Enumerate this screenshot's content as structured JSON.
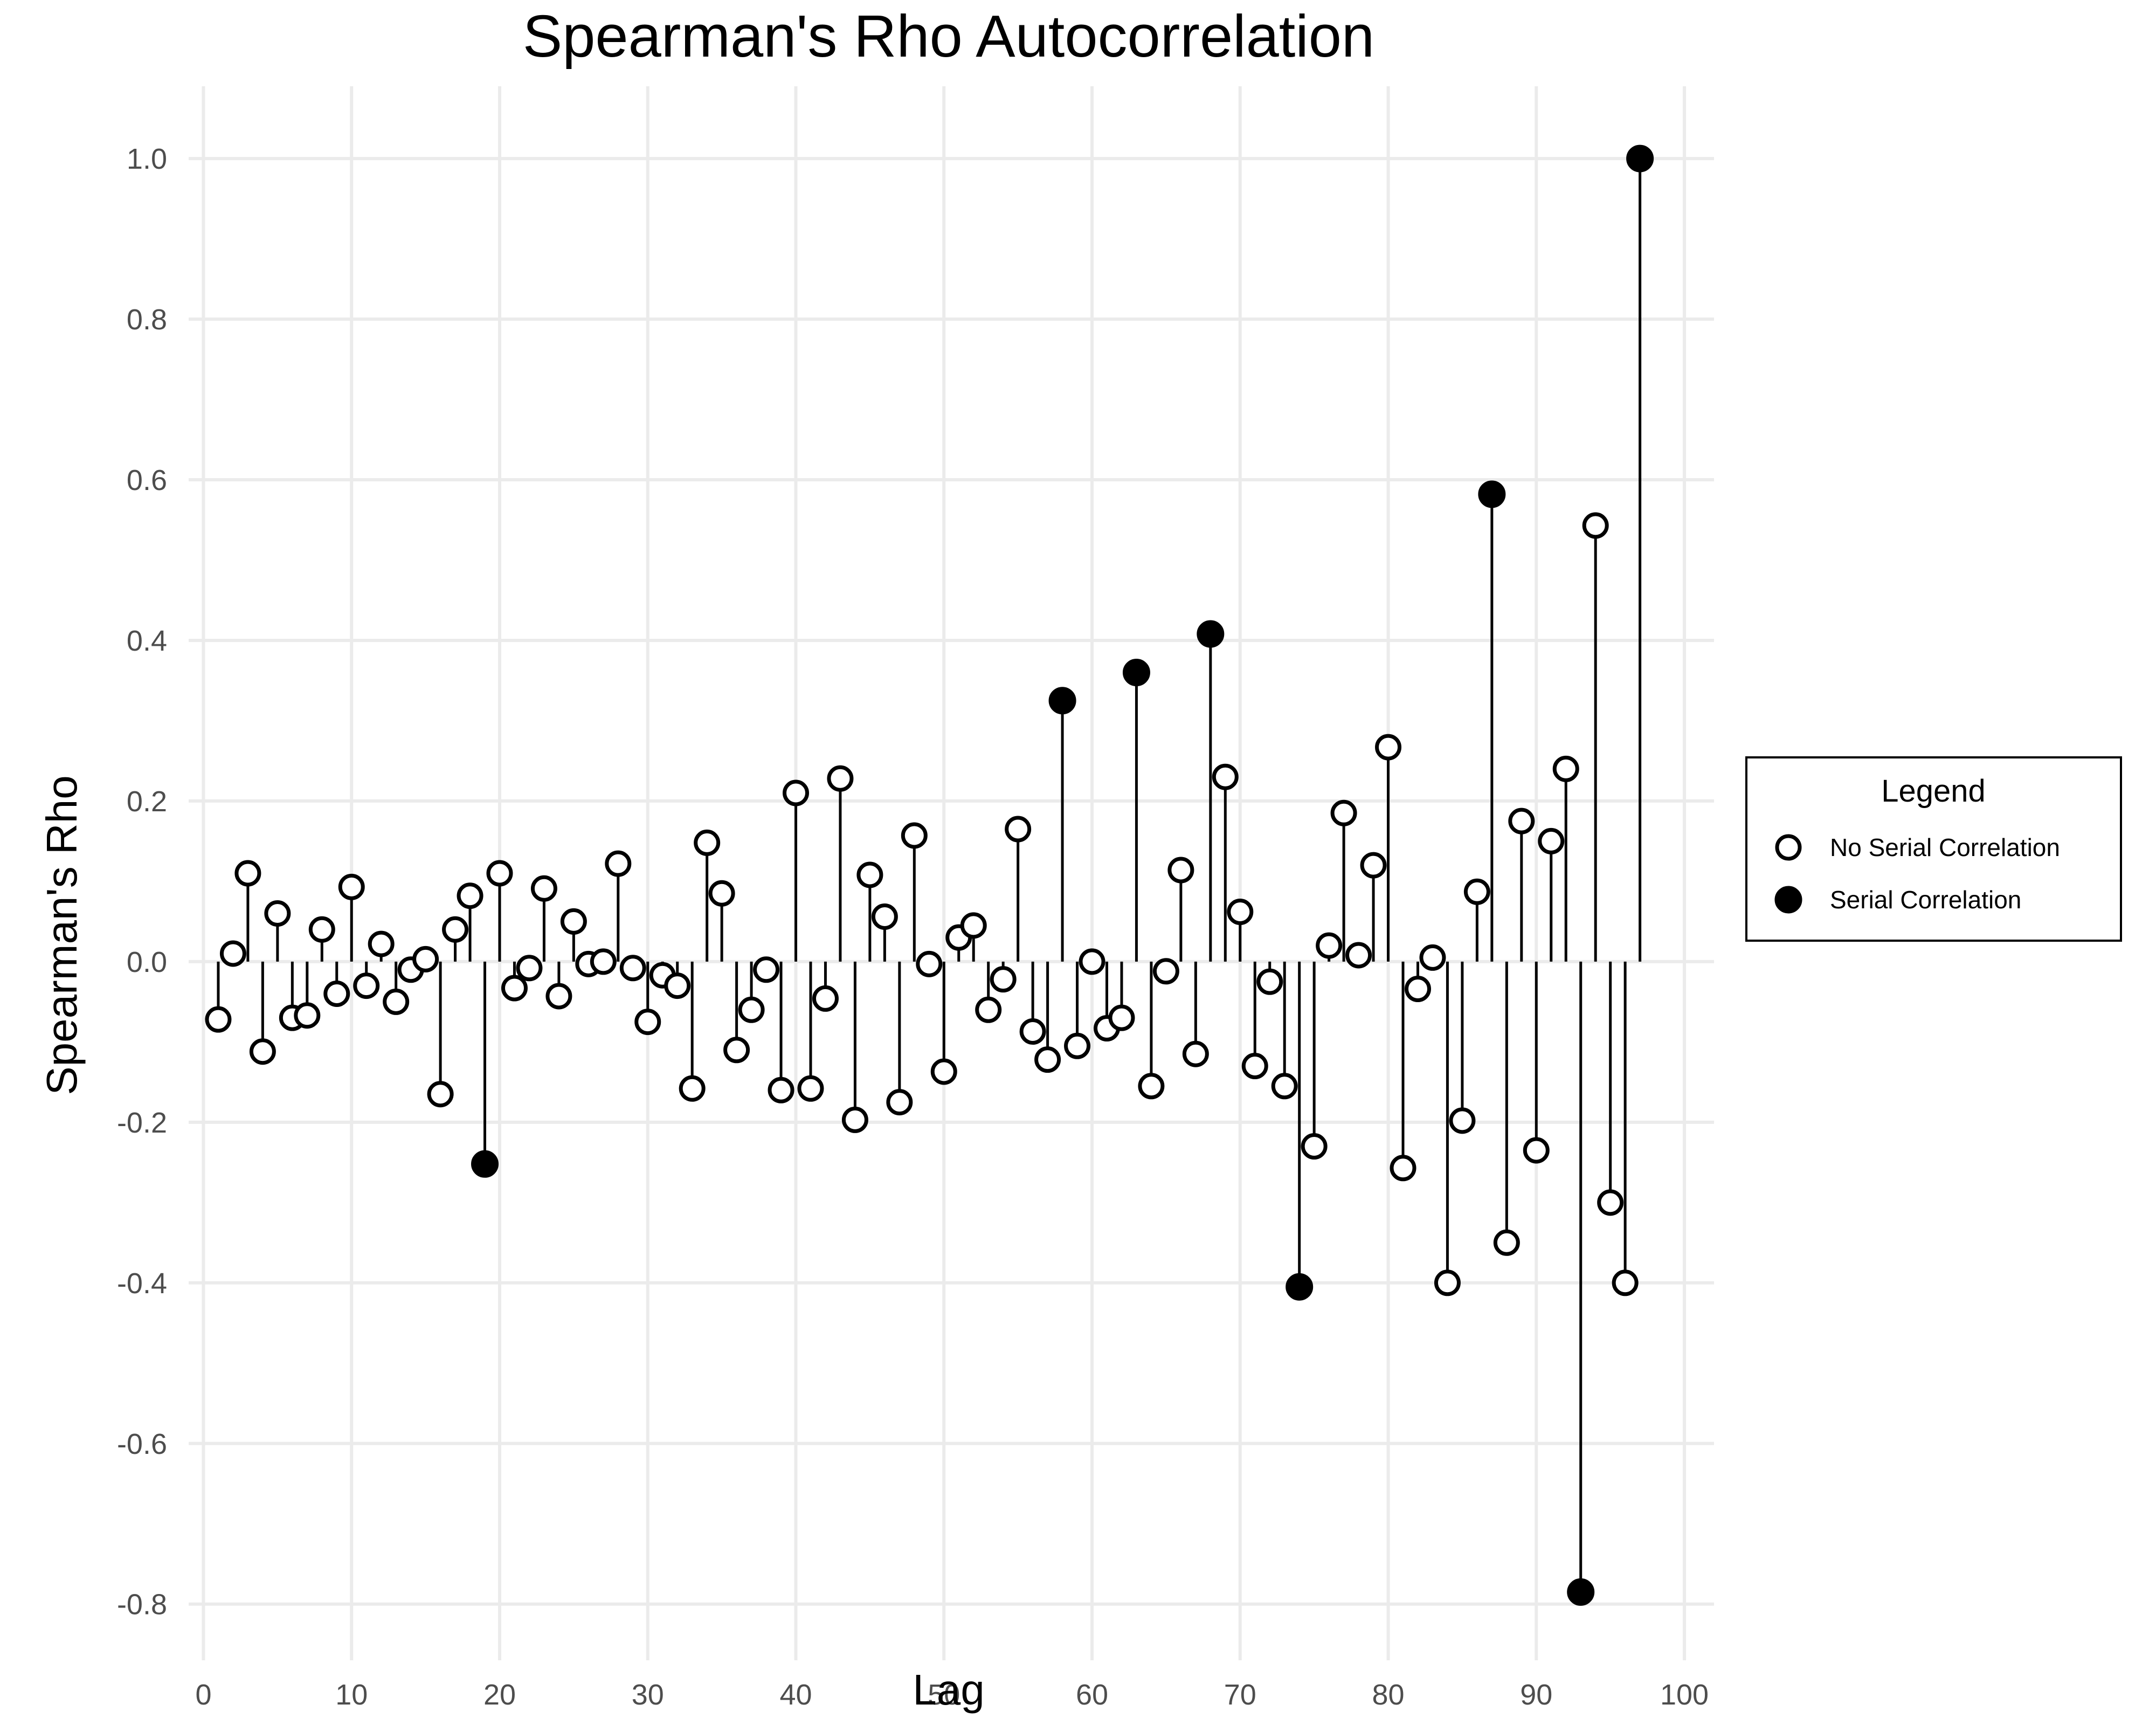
{
  "chart_data": {
    "type": "scatter",
    "style": "lollipop",
    "title": "Spearman's Rho Autocorrelation",
    "xlabel": "Lag",
    "ylabel": "Spearman's Rho",
    "xlim": [
      -1,
      102
    ],
    "ylim": [
      -0.87,
      1.09
    ],
    "xticks": [
      0,
      10,
      20,
      30,
      40,
      50,
      60,
      70,
      80,
      90,
      100
    ],
    "xtick_labels": [
      "0",
      "10",
      "20",
      "30",
      "40",
      "50",
      "60",
      "70",
      "80",
      "90",
      "100"
    ],
    "yticks": [
      1.0,
      0.8,
      0.6,
      0.4,
      0.2,
      0.0,
      -0.2,
      -0.4,
      -0.6,
      -0.8
    ],
    "ytick_labels": [
      "1.0",
      "0.8",
      "0.6",
      "0.4",
      "0.2",
      "0.0",
      "-0.2",
      "-0.4",
      "-0.6",
      "-0.8"
    ],
    "grid": true,
    "legend": {
      "title": "Legend",
      "placement": "right",
      "entries": [
        {
          "label": "No Serial Correlation",
          "marker": "open-circle"
        },
        {
          "label": "Serial Correlation",
          "marker": "filled-circle"
        }
      ]
    },
    "colors": {
      "stem": "#000000",
      "grid": "#ebebeb",
      "open_fill": "#ffffff",
      "filled": "#000000"
    },
    "x": [
      1,
      2,
      3,
      4,
      5,
      6,
      7,
      8,
      9,
      10,
      11,
      12,
      13,
      14,
      15,
      16,
      17,
      18,
      19,
      20,
      21,
      22,
      23,
      24,
      25,
      26,
      27,
      28,
      29,
      30,
      31,
      32,
      33,
      34,
      35,
      36,
      37,
      38,
      39,
      40,
      41,
      42,
      43,
      44,
      45,
      46,
      47,
      48,
      49,
      50,
      51,
      52,
      53,
      54,
      55,
      56,
      57,
      58,
      59,
      60,
      61,
      62,
      63,
      64,
      65,
      66,
      67,
      68,
      69,
      70,
      71,
      72,
      73,
      74,
      75,
      76,
      77,
      78,
      79,
      80,
      81,
      82,
      83,
      84,
      85,
      86,
      87,
      88,
      89,
      90,
      91,
      92,
      93,
      94,
      95,
      96,
      97
    ],
    "y": [
      -0.072,
      0.01,
      0.11,
      -0.112,
      0.06,
      -0.07,
      -0.067,
      0.04,
      -0.04,
      0.093,
      -0.03,
      0.022,
      -0.05,
      -0.01,
      0.003,
      -0.165,
      0.04,
      0.082,
      -0.252,
      0.11,
      -0.033,
      -0.008,
      0.091,
      -0.043,
      0.05,
      -0.003,
      0.0,
      0.122,
      -0.008,
      -0.075,
      -0.017,
      -0.03,
      -0.158,
      0.148,
      0.085,
      -0.11,
      -0.06,
      -0.01,
      -0.16,
      0.21,
      -0.158,
      -0.046,
      0.228,
      -0.197,
      0.108,
      0.056,
      -0.175,
      0.157,
      -0.003,
      -0.137,
      0.03,
      0.045,
      -0.06,
      -0.022,
      0.165,
      -0.087,
      -0.122,
      0.325,
      -0.105,
      0.0,
      -0.083,
      -0.07,
      0.36,
      -0.155,
      -0.012,
      0.114,
      -0.115,
      0.408,
      0.23,
      0.062,
      -0.13,
      -0.025,
      -0.155,
      -0.405,
      -0.23,
      0.02,
      0.185,
      0.008,
      0.12,
      0.267,
      -0.257,
      -0.034,
      0.005,
      -0.4,
      -0.198,
      0.087,
      0.582,
      -0.35,
      0.175,
      -0.235,
      0.15,
      0.24,
      -0.785,
      0.543,
      -0.3,
      -0.4,
      1.0
    ],
    "serial_correlation_lags": [
      19,
      58,
      63,
      68,
      74,
      87,
      93,
      97
    ]
  }
}
